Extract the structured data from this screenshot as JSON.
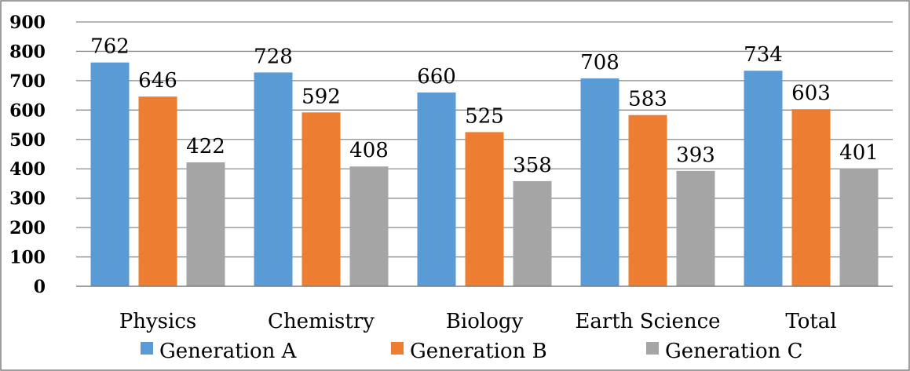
{
  "chart_data": {
    "type": "bar",
    "title": "",
    "xlabel": "",
    "ylabel": "",
    "categories": [
      "Physics",
      "Chemistry",
      "Biology",
      "Earth Science",
      "Total"
    ],
    "series": [
      {
        "name": "Generation A",
        "color": "#5b9bd5",
        "values": [
          762,
          728,
          660,
          708,
          734
        ]
      },
      {
        "name": "Generation B",
        "color": "#ed7d31",
        "values": [
          646,
          592,
          525,
          583,
          603
        ]
      },
      {
        "name": "Generation C",
        "color": "#a5a5a5",
        "values": [
          422,
          408,
          358,
          393,
          401
        ]
      }
    ],
    "ylim": [
      0,
      900
    ],
    "yticks": [
      0,
      100,
      200,
      300,
      400,
      500,
      600,
      700,
      800,
      900
    ],
    "grid": true,
    "data_labels": true,
    "legend_position": "bottom"
  },
  "colors": {
    "gridline": "#8c8c8c",
    "axis": "#7f7f7f",
    "border": "#7f7f7f",
    "background": "#ffffff"
  }
}
